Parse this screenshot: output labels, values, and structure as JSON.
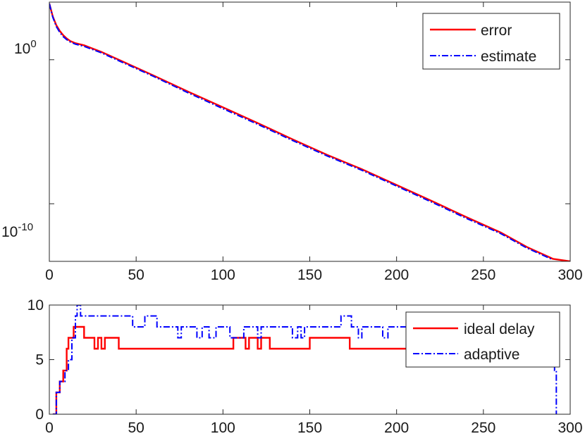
{
  "chart_data": [
    {
      "type": "line",
      "yscale": "log",
      "xlim": [
        0,
        300
      ],
      "ylim": [
        1e-14,
        10000.0
      ],
      "xticks": [
        0,
        50,
        100,
        150,
        200,
        250,
        300
      ],
      "xtick_labels": [
        "0",
        "50",
        "100",
        "150",
        "200",
        "250",
        "300"
      ],
      "yticks": [
        1,
        1e-10
      ],
      "ytick_labels": [
        {
          "base": "10",
          "exp": "0"
        },
        {
          "base": "10",
          "exp": "-10"
        }
      ],
      "legend_position": "top-right",
      "series": [
        {
          "name": "error",
          "color": "#ff0000",
          "style": "solid",
          "x": [
            0,
            2,
            4,
            6,
            8,
            10,
            12,
            15,
            20,
            30,
            40,
            60,
            80,
            100,
            120,
            140,
            160,
            180,
            200,
            220,
            240,
            260,
            275,
            290,
            300
          ],
          "y": [
            8000,
            1000,
            250,
            100,
            50,
            30,
            20,
            14,
            10,
            3.5,
            1,
            0.08,
            0.006,
            0.0005,
            4e-05,
            3e-06,
            2.5e-07,
            2.5e-08,
            2e-09,
            1.6e-10,
            1.2e-11,
            1e-12,
            1e-13,
            1.5e-14,
            1e-14
          ]
        },
        {
          "name": "estimate",
          "color": "#0000ff",
          "style": "dashdot",
          "x": [
            0,
            2,
            4,
            6,
            8,
            10,
            12,
            15,
            20,
            30,
            40,
            60,
            80,
            100,
            120,
            140,
            160,
            180,
            200,
            220,
            240,
            260,
            275,
            290
          ],
          "y": [
            8000,
            900,
            200,
            80,
            40,
            25,
            17,
            12,
            8.5,
            3,
            0.85,
            0.07,
            0.005,
            0.0004,
            3.3e-05,
            2.5e-06,
            2.1e-07,
            2.1e-08,
            1.7e-09,
            1.35e-10,
            1e-11,
            8.5e-13,
            8.5e-14,
            1.3e-14
          ]
        }
      ]
    },
    {
      "type": "line",
      "xlim": [
        0,
        300
      ],
      "ylim": [
        0,
        10
      ],
      "xticks": [
        0,
        50,
        100,
        150,
        200,
        250,
        300
      ],
      "xtick_labels": [
        "0",
        "50",
        "100",
        "150",
        "200",
        "250",
        "300"
      ],
      "yticks": [
        0,
        5,
        10
      ],
      "ytick_labels": [
        "0",
        "5",
        "10"
      ],
      "legend_position": "top-right",
      "series": [
        {
          "name": "ideal delay",
          "color": "#ff0000",
          "style": "solid",
          "steps": [
            [
              2,
              0
            ],
            [
              4,
              2
            ],
            [
              6,
              3
            ],
            [
              8,
              4
            ],
            [
              10,
              6
            ],
            [
              11,
              7
            ],
            [
              13,
              7
            ],
            [
              14,
              8
            ],
            [
              20,
              7
            ],
            [
              26,
              6
            ],
            [
              28,
              7
            ],
            [
              30,
              6
            ],
            [
              32,
              7
            ],
            [
              40,
              6
            ],
            [
              106,
              7
            ],
            [
              113,
              6
            ],
            [
              115,
              7
            ],
            [
              120,
              6
            ],
            [
              122,
              7
            ],
            [
              127,
              6
            ],
            [
              150,
              7
            ],
            [
              173,
              6
            ],
            [
              230,
              6
            ]
          ]
        },
        {
          "name": "adaptive",
          "color": "#0000ff",
          "style": "dashdot",
          "steps": [
            [
              2,
              0
            ],
            [
              4,
              2
            ],
            [
              6,
              3
            ],
            [
              9,
              4
            ],
            [
              11,
              5
            ],
            [
              13,
              7
            ],
            [
              15,
              9
            ],
            [
              16,
              10
            ],
            [
              18,
              9
            ],
            [
              48,
              8
            ],
            [
              55,
              9
            ],
            [
              62,
              8
            ],
            [
              74,
              7
            ],
            [
              76,
              8
            ],
            [
              85,
              7
            ],
            [
              88,
              8
            ],
            [
              92,
              7
            ],
            [
              96,
              8
            ],
            [
              104,
              7
            ],
            [
              112,
              8
            ],
            [
              120,
              7
            ],
            [
              122,
              8
            ],
            [
              140,
              7
            ],
            [
              143,
              8
            ],
            [
              145,
              7
            ],
            [
              147,
              8
            ],
            [
              168,
              9
            ],
            [
              174,
              8
            ],
            [
              178,
              7
            ],
            [
              180,
              8
            ],
            [
              192,
              7
            ],
            [
              195,
              8
            ],
            [
              230,
              8
            ],
            [
              291,
              4
            ],
            [
              292,
              0
            ]
          ]
        }
      ]
    }
  ]
}
